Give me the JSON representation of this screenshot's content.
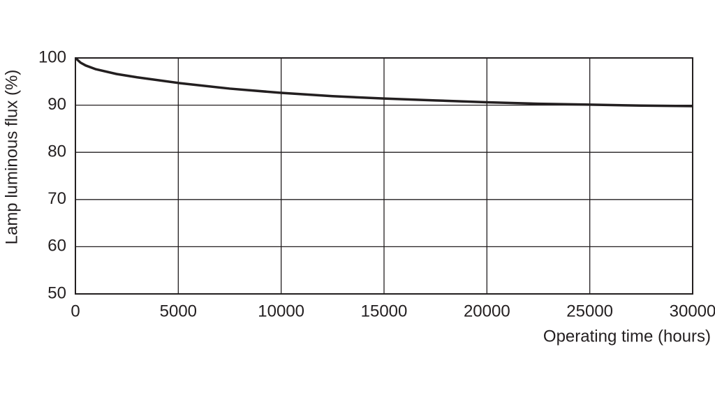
{
  "chart_data": {
    "type": "line",
    "x_label": "Operating time (hours)",
    "y_label": "Lamp luminous flux (%)",
    "x": [
      0,
      250,
      500,
      1000,
      2000,
      3000,
      5000,
      7500,
      10000,
      12500,
      15000,
      17500,
      20000,
      22500,
      25000,
      27500,
      30000
    ],
    "series": [
      {
        "color": "#231f20",
        "values": [
          100,
          99,
          98.4,
          97.6,
          96.6,
          95.9,
          94.7,
          93.5,
          92.6,
          91.9,
          91.4,
          91,
          90.6,
          90.3,
          90.1,
          89.9,
          89.8
        ]
      }
    ],
    "xlim": [
      0,
      30000
    ],
    "xticks": [
      0,
      5000,
      10000,
      15000,
      20000,
      25000,
      30000
    ],
    "ylim": [
      50,
      100
    ],
    "yticks": [
      50,
      60,
      70,
      80,
      90,
      100
    ],
    "grid": true
  }
}
